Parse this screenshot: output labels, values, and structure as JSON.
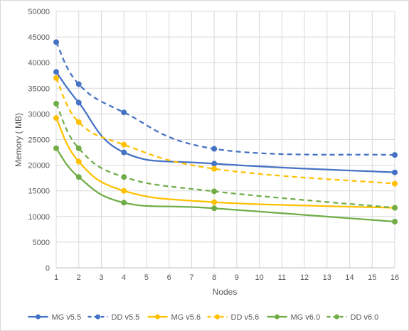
{
  "chart_data": {
    "type": "line",
    "title": "",
    "xlabel": "Nodes",
    "ylabel": "Memory ( MB)",
    "xlim": [
      1,
      16
    ],
    "ylim": [
      0,
      50000
    ],
    "xticks": [
      1,
      2,
      3,
      4,
      5,
      6,
      7,
      8,
      9,
      10,
      11,
      12,
      13,
      14,
      15,
      16
    ],
    "yticks": [
      0,
      5000,
      10000,
      15000,
      20000,
      25000,
      30000,
      35000,
      40000,
      45000,
      50000
    ],
    "grid": true,
    "legend_position": "bottom",
    "x": [
      1,
      2,
      4,
      8,
      16
    ],
    "series": [
      {
        "name": "MG v5.5",
        "values": [
          38200,
          32200,
          22500,
          20300,
          18600
        ],
        "color": "#4472c4",
        "dash": "solid"
      },
      {
        "name": "DD v5.5",
        "values": [
          44000,
          35800,
          30300,
          23200,
          22000
        ],
        "color": "#4472c4",
        "dash": "dashed"
      },
      {
        "name": "MG v5.6",
        "values": [
          29200,
          20700,
          15000,
          12800,
          11700
        ],
        "color": "#ffc000",
        "dash": "solid"
      },
      {
        "name": "DD v5.6",
        "values": [
          37000,
          28400,
          24000,
          19300,
          16400
        ],
        "color": "#ffc000",
        "dash": "dashed"
      },
      {
        "name": "MG v6.0",
        "values": [
          23300,
          17700,
          12700,
          11600,
          9000
        ],
        "color": "#70ad47",
        "dash": "solid"
      },
      {
        "name": "DD v6.0",
        "values": [
          32000,
          23300,
          17700,
          14900,
          11700
        ],
        "color": "#70ad47",
        "dash": "dashed"
      }
    ]
  }
}
